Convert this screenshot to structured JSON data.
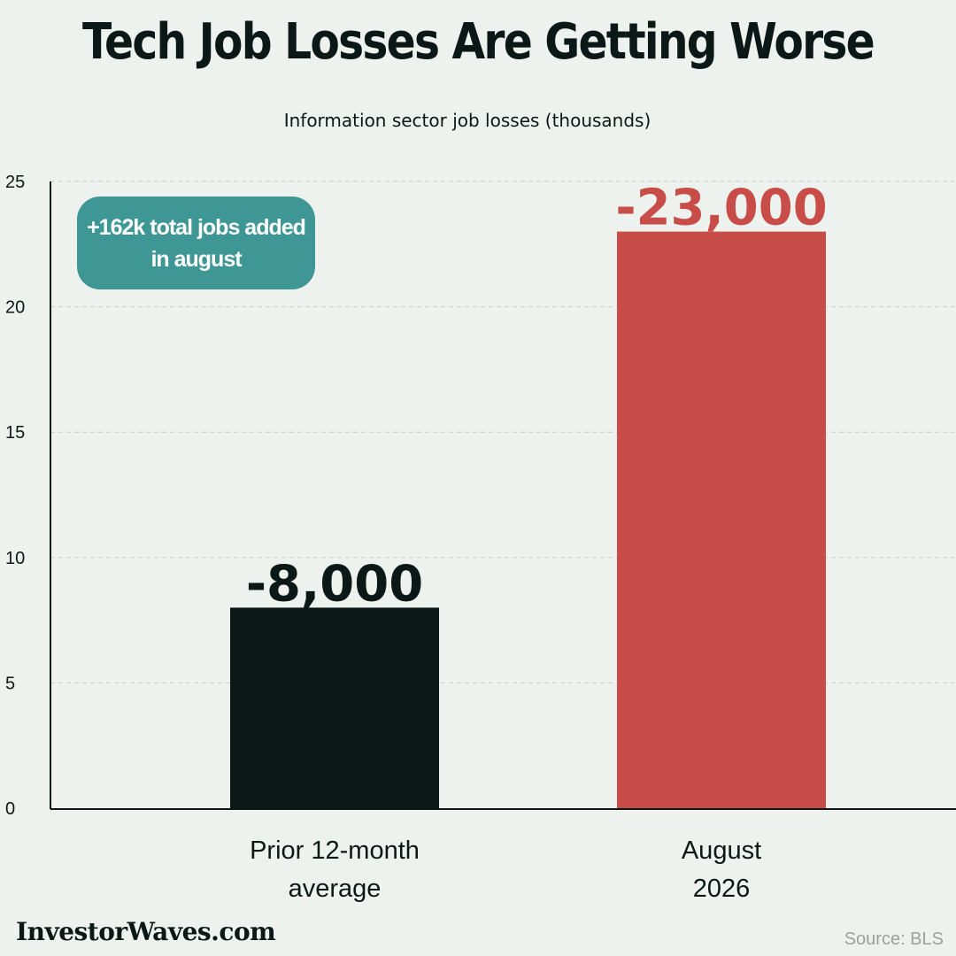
{
  "title": "Tech Job Losses Are Getting Worse",
  "subtitle": "Information sector job losses (thousands)",
  "callout": {
    "line1": "+162k total jobs added",
    "line2": "in august",
    "color": "#3e9795"
  },
  "brand": "InvestorWaves.com",
  "source": "Source: BLS",
  "colors": {
    "background": "#eef2ee",
    "text": "#0c1817",
    "bar_prior": "#0c1817",
    "bar_august": "#c84c48",
    "callout": "#3e9795",
    "source": "#9aa29e"
  },
  "chart_data": {
    "type": "bar",
    "categories": [
      [
        "Prior 12-month",
        "average"
      ],
      [
        "August",
        "2026"
      ]
    ],
    "values": [
      8,
      23
    ],
    "data_labels": [
      "-8,000",
      "-23,000"
    ],
    "bar_colors": [
      "#0c1817",
      "#c84c48"
    ],
    "label_colors": [
      "#0c1817",
      "#c84c48"
    ],
    "ylim": [
      0,
      25
    ],
    "yticks": [
      "0",
      "5",
      "10",
      "15",
      "20",
      "25"
    ],
    "ytick_values": [
      0,
      5,
      10,
      15,
      20,
      25
    ],
    "grid": true,
    "title": "Tech Job Losses Are Getting Worse",
    "subtitle": "Information sector job losses (thousands)"
  }
}
